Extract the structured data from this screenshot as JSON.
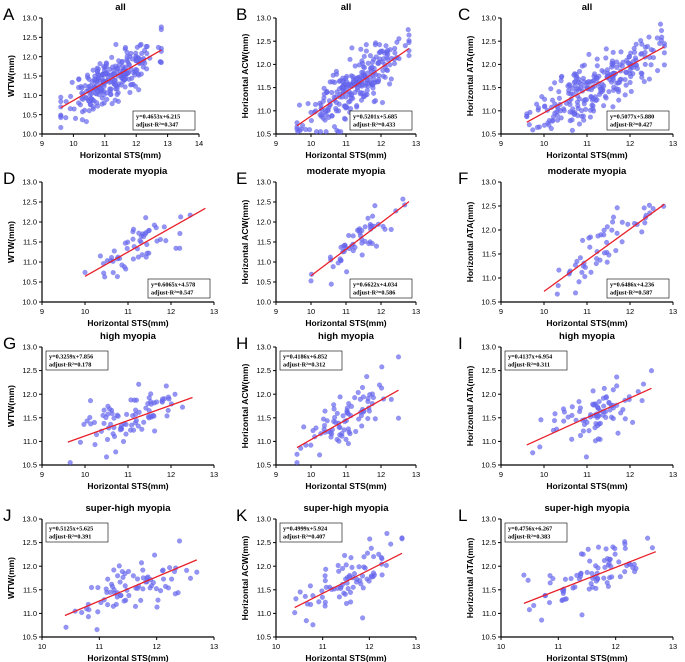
{
  "figure": {
    "colors": {
      "point": "#6b6bf0",
      "point_edge": "#3b3bd6",
      "fit_line": "#e8202a",
      "axis": "#000000"
    }
  },
  "chart_data": [
    {
      "panel": "A",
      "type": "scatter",
      "title": "all",
      "xlabel": "Horizontal STS(mm)",
      "ylabel": "WTW(mm)",
      "xlim": [
        9,
        14
      ],
      "ylim": [
        10,
        13
      ],
      "xticks": [
        9,
        10,
        11,
        12,
        13,
        14
      ],
      "yticks": [
        10.0,
        10.5,
        11.0,
        11.5,
        12.0,
        12.5,
        13.0
      ],
      "slope": 0.4653,
      "intercept": 6.215,
      "eq_text": "y=0.4653x+6.215",
      "r2_text": "adjust-R²=0.347",
      "box": "bottom-right",
      "n_points": 260,
      "x_range": [
        9.6,
        12.8
      ],
      "spread": 0.3,
      "seed": 11
    },
    {
      "panel": "B",
      "type": "scatter",
      "title": "all",
      "xlabel": "Horizontal STS(mm)",
      "ylabel": "Horizontal ACW(mm)",
      "xlim": [
        9,
        13
      ],
      "ylim": [
        10.5,
        13.0
      ],
      "xticks": [
        9,
        10,
        11,
        12,
        13
      ],
      "yticks": [
        10.5,
        11.0,
        11.5,
        12.0,
        12.5,
        13.0
      ],
      "slope": 0.5201,
      "intercept": 5.685,
      "eq_text": "y=0.5201x+5.685",
      "r2_text": "adjust-R²=0.433",
      "box": "bottom-right",
      "n_points": 260,
      "x_range": [
        9.6,
        12.8
      ],
      "spread": 0.28,
      "seed": 23
    },
    {
      "panel": "C",
      "type": "scatter",
      "title": "all",
      "xlabel": "Horizontal STS(mm)",
      "ylabel": "Horizontal ATA(mm)",
      "xlim": [
        9,
        13
      ],
      "ylim": [
        10.5,
        13.0
      ],
      "xticks": [
        9,
        10,
        11,
        12,
        13
      ],
      "yticks": [
        10.5,
        11.0,
        11.5,
        12.0,
        12.5,
        13.0
      ],
      "slope": 0.5077,
      "intercept": 5.88,
      "eq_text": "y=0.5077x+5.880",
      "r2_text": "adjust-R²=0.427",
      "box": "bottom-right",
      "n_points": 260,
      "x_range": [
        9.6,
        12.8
      ],
      "spread": 0.3,
      "seed": 37
    },
    {
      "panel": "D",
      "type": "scatter",
      "title": "moderate myopia",
      "xlabel": "Horizontal STS(mm)",
      "ylabel": "WTW(mm)",
      "xlim": [
        9,
        13
      ],
      "ylim": [
        10.0,
        13.0
      ],
      "xticks": [
        9,
        10,
        11,
        12,
        13
      ],
      "yticks": [
        10.0,
        10.5,
        11.0,
        11.5,
        12.0,
        12.5,
        13.0
      ],
      "slope": 0.6065,
      "intercept": 4.578,
      "eq_text": "y=0.6065x+4.578",
      "r2_text": "adjust-R²=0.547",
      "box": "bottom-right",
      "n_points": 55,
      "x_range": [
        10.0,
        12.8
      ],
      "spread": 0.25,
      "seed": 41
    },
    {
      "panel": "E",
      "type": "scatter",
      "title": "moderate myopia",
      "xlabel": "Horizontal STS(mm)",
      "ylabel": "Horizontal ACW(mm)",
      "xlim": [
        9,
        13
      ],
      "ylim": [
        10.0,
        13.0
      ],
      "xticks": [
        9,
        10,
        11,
        12,
        13
      ],
      "yticks": [
        10.0,
        10.5,
        11.0,
        11.5,
        12.0,
        12.5,
        13.0
      ],
      "slope": 0.6622,
      "intercept": 4.034,
      "eq_text": "y=0.6622x+4.034",
      "r2_text": "adjust-R²=0.586",
      "box": "bottom-right",
      "n_points": 55,
      "x_range": [
        10.0,
        12.8
      ],
      "spread": 0.25,
      "seed": 53
    },
    {
      "panel": "F",
      "type": "scatter",
      "title": "moderate myopia",
      "xlabel": "Horizontal STS(mm)",
      "ylabel": "Horizontal ATA(mm)",
      "xlim": [
        9,
        13
      ],
      "ylim": [
        10.5,
        13.0
      ],
      "xticks": [
        9,
        10,
        11,
        12,
        13
      ],
      "yticks": [
        10.5,
        11.0,
        11.5,
        12.0,
        12.5,
        13.0
      ],
      "slope": 0.6486,
      "intercept": 4.236,
      "eq_text": "y=0.6486x+4.236",
      "r2_text": "adjust-R²=0.587",
      "box": "bottom-right",
      "n_points": 55,
      "x_range": [
        10.0,
        12.8
      ],
      "spread": 0.25,
      "seed": 67
    },
    {
      "panel": "G",
      "type": "scatter",
      "title": "high myopia",
      "xlabel": "Horizontal STS(mm)",
      "ylabel": "WTW(mm)",
      "xlim": [
        9,
        13
      ],
      "ylim": [
        10.5,
        13.0
      ],
      "xticks": [
        9,
        10,
        11,
        12,
        13
      ],
      "yticks": [
        10.5,
        11.0,
        11.5,
        12.0,
        12.5,
        13.0
      ],
      "slope": 0.3259,
      "intercept": 7.856,
      "eq_text": "y=0.3259x+7.856",
      "r2_text": "adjust-R²=0.178",
      "box": "top-left",
      "n_points": 85,
      "x_range": [
        9.6,
        12.5
      ],
      "spread": 0.3,
      "seed": 71
    },
    {
      "panel": "H",
      "type": "scatter",
      "title": "high myopia",
      "xlabel": "Horizontal STS(mm)",
      "ylabel": "Horizontal ACW(mm)",
      "xlim": [
        9,
        13
      ],
      "ylim": [
        10.5,
        13.0
      ],
      "xticks": [
        9,
        10,
        11,
        12,
        13
      ],
      "yticks": [
        10.5,
        11.0,
        11.5,
        12.0,
        12.5,
        13.0
      ],
      "slope": 0.4186,
      "intercept": 6.852,
      "eq_text": "y=0.4186x+6.852",
      "r2_text": "adjust-R²=0.312",
      "box": "top-left",
      "n_points": 85,
      "x_range": [
        9.6,
        12.5
      ],
      "spread": 0.28,
      "seed": 83
    },
    {
      "panel": "I",
      "type": "scatter",
      "title": "high myopia",
      "xlabel": "Horizontal STS(mm)",
      "ylabel": "Horizontal ATA(mm)",
      "xlim": [
        9,
        13
      ],
      "ylim": [
        10.5,
        13.0
      ],
      "xticks": [
        9,
        10,
        11,
        12,
        13
      ],
      "yticks": [
        10.5,
        11.0,
        11.5,
        12.0,
        12.5,
        13.0
      ],
      "slope": 0.4137,
      "intercept": 6.954,
      "eq_text": "y=0.4137x+6.954",
      "r2_text": "adjust-R²=0.311",
      "box": "top-left",
      "n_points": 85,
      "x_range": [
        9.6,
        12.5
      ],
      "spread": 0.28,
      "seed": 97
    },
    {
      "panel": "J",
      "type": "scatter",
      "title": "super-high myopia",
      "xlabel": "Horizontal STS(mm)",
      "ylabel": "WTW(mm)",
      "xlim": [
        10,
        13
      ],
      "ylim": [
        10.5,
        13.0
      ],
      "xticks": [
        10,
        11,
        12,
        13
      ],
      "yticks": [
        10.5,
        11.0,
        11.5,
        12.0,
        12.5,
        13.0
      ],
      "slope": 0.5125,
      "intercept": 5.625,
      "eq_text": "y=0.5125x+5.625",
      "r2_text": "adjust-R²=0.391",
      "box": "top-left",
      "n_points": 80,
      "x_range": [
        10.4,
        12.7
      ],
      "spread": 0.27,
      "seed": 101
    },
    {
      "panel": "K",
      "type": "scatter",
      "title": "super-high myopia",
      "xlabel": "Horizontal STS(mm)",
      "ylabel": "Horizontal ACW(mm)",
      "xlim": [
        10,
        13
      ],
      "ylim": [
        10.5,
        13.0
      ],
      "xticks": [
        10,
        11,
        12,
        13
      ],
      "yticks": [
        10.5,
        11.0,
        11.5,
        12.0,
        12.5,
        13.0
      ],
      "slope": 0.4999,
      "intercept": 5.924,
      "eq_text": "y=0.4999x+5.924",
      "r2_text": "adjust-R²=0.407",
      "box": "top-left",
      "n_points": 80,
      "x_range": [
        10.4,
        12.7
      ],
      "spread": 0.27,
      "seed": 113
    },
    {
      "panel": "L",
      "type": "scatter",
      "title": "super-high myopia",
      "xlabel": "Horizontal STS(mm)",
      "ylabel": "Horizontal ATA(mm)",
      "xlim": [
        10,
        13
      ],
      "ylim": [
        10.5,
        13.0
      ],
      "xticks": [
        10,
        11,
        12,
        13
      ],
      "yticks": [
        10.5,
        11.0,
        11.5,
        12.0,
        12.5,
        13.0
      ],
      "slope": 0.4756,
      "intercept": 6.267,
      "eq_text": "y=0.4756x+6.267",
      "r2_text": "adjust-R²=0.383",
      "box": "top-left",
      "n_points": 80,
      "x_range": [
        10.4,
        12.7
      ],
      "spread": 0.27,
      "seed": 127
    }
  ]
}
